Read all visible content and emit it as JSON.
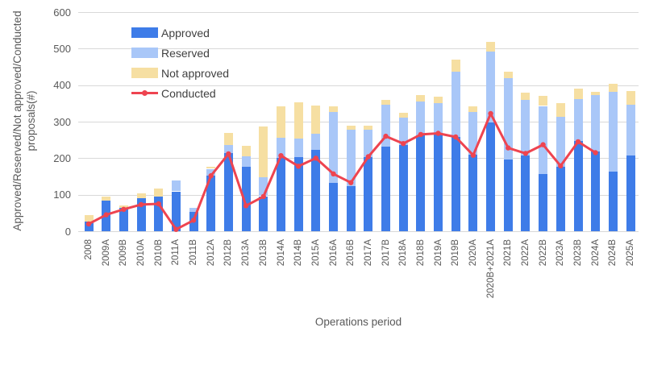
{
  "chart_data": {
    "type": "bar",
    "stacked": true,
    "overlay_line": "Conducted",
    "title": "",
    "xlabel": "Operations period",
    "ylabel": "Approved/Reserved/Not approved/Conducted proposals(#)",
    "ylabel_lines": [
      "Approved/Reserved/Not approved/Conducted",
      "proposals(#)"
    ],
    "ylim": [
      0,
      600
    ],
    "ytick_step": 100,
    "grid": true,
    "legend_position": "top-left-inside",
    "categories": [
      "2008",
      "2009A",
      "2009B",
      "2010A",
      "2010B",
      "2011A",
      "2011B",
      "2012A",
      "2012B",
      "2013A",
      "2013B",
      "2014A",
      "2014B",
      "2015A",
      "2016A",
      "2016B",
      "2017A",
      "2017B",
      "2018A",
      "2018B",
      "2019A",
      "2019B",
      "2020A",
      "2020B+2021A",
      "2021B",
      "2022A",
      "2022B",
      "2023A",
      "2023B",
      "2024A",
      "2024B",
      "2025A"
    ],
    "series": [
      {
        "name": "Approved",
        "type": "bar",
        "color": "#3e7ce8",
        "values": [
          27,
          84,
          63,
          90,
          96,
          109,
          53,
          152,
          213,
          176,
          96,
          200,
          203,
          223,
          132,
          124,
          203,
          232,
          236,
          262,
          264,
          258,
          210,
          297,
          196,
          207,
          157,
          176,
          247,
          218,
          164,
          207
        ]
      },
      {
        "name": "Reserved",
        "type": "bar",
        "color": "#a9c7f8",
        "values": [
          0,
          0,
          0,
          0,
          0,
          29,
          12,
          19,
          23,
          29,
          52,
          55,
          51,
          44,
          194,
          154,
          74,
          115,
          75,
          94,
          86,
          180,
          116,
          195,
          224,
          152,
          186,
          137,
          114,
          154,
          218,
          140
        ]
      },
      {
        "name": "Not approved",
        "type": "bar",
        "color": "#f6dfa2",
        "values": [
          17,
          11,
          8,
          14,
          21,
          0,
          0,
          6,
          33,
          30,
          138,
          86,
          98,
          78,
          15,
          11,
          12,
          12,
          13,
          18,
          18,
          33,
          17,
          27,
          16,
          20,
          28,
          38,
          29,
          10,
          21,
          36
        ]
      },
      {
        "name": "Conducted",
        "type": "line",
        "color": "#ee4450",
        "values": [
          20,
          45,
          60,
          73,
          75,
          5,
          30,
          152,
          212,
          70,
          95,
          207,
          178,
          200,
          157,
          133,
          204,
          260,
          240,
          265,
          268,
          258,
          208,
          322,
          228,
          213,
          237,
          179,
          245,
          215,
          null,
          null
        ]
      }
    ],
    "grid_color": "#d9d9d9",
    "tick_text_color": "#595959"
  }
}
